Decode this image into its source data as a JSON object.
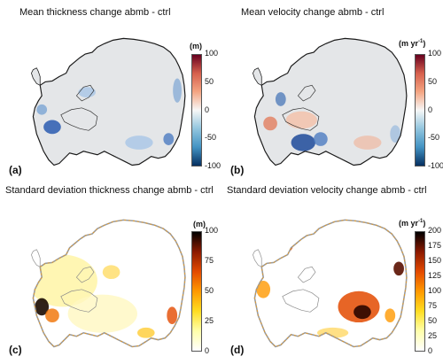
{
  "panels": [
    {
      "id": "a",
      "title": "Mean thickness change abmb - ctrl",
      "label": "(a)",
      "unit": "(m)",
      "unit_sup": "",
      "ticks": [
        "100",
        "50",
        "0",
        "-50",
        "-100"
      ],
      "scheme": "diverging",
      "kind": "thick_mean"
    },
    {
      "id": "b",
      "title": "Mean velocity change abmb - ctrl",
      "label": "(b)",
      "unit": "(m yr",
      "unit_sup": "-1",
      "unit_tail": ")",
      "ticks": [
        "100",
        "50",
        "0",
        "-50",
        "-100"
      ],
      "scheme": "diverging",
      "kind": "vel_mean"
    },
    {
      "id": "c",
      "title": "Standard deviation thickness change abmb - ctrl",
      "label": "(c)",
      "unit": "(m)",
      "unit_sup": "",
      "ticks": [
        "100",
        "75",
        "50",
        "25",
        "0"
      ],
      "scheme": "hot",
      "kind": "thick_std"
    },
    {
      "id": "d",
      "title": "Standard deviation velocity change abmb - ctrl",
      "label": "(d)",
      "unit": "(m yr",
      "unit_sup": "-1",
      "unit_tail": ")",
      "ticks": [
        "200",
        "175",
        "150",
        "125",
        "100",
        "75",
        "50",
        "25",
        "0"
      ],
      "scheme": "hot",
      "kind": "vel_std"
    }
  ],
  "colors": {
    "ice": "#e4e6e8",
    "outline": "#1a1a1a",
    "diverging": [
      "#67001f",
      "#d6604d",
      "#f4a582",
      "#f7f7f7",
      "#92c5de",
      "#4393c3",
      "#053061"
    ],
    "hot": [
      "#000000",
      "#8b1a00",
      "#e34a00",
      "#ff9900",
      "#ffdd22",
      "#ffffaa",
      "#ffffff"
    ]
  }
}
